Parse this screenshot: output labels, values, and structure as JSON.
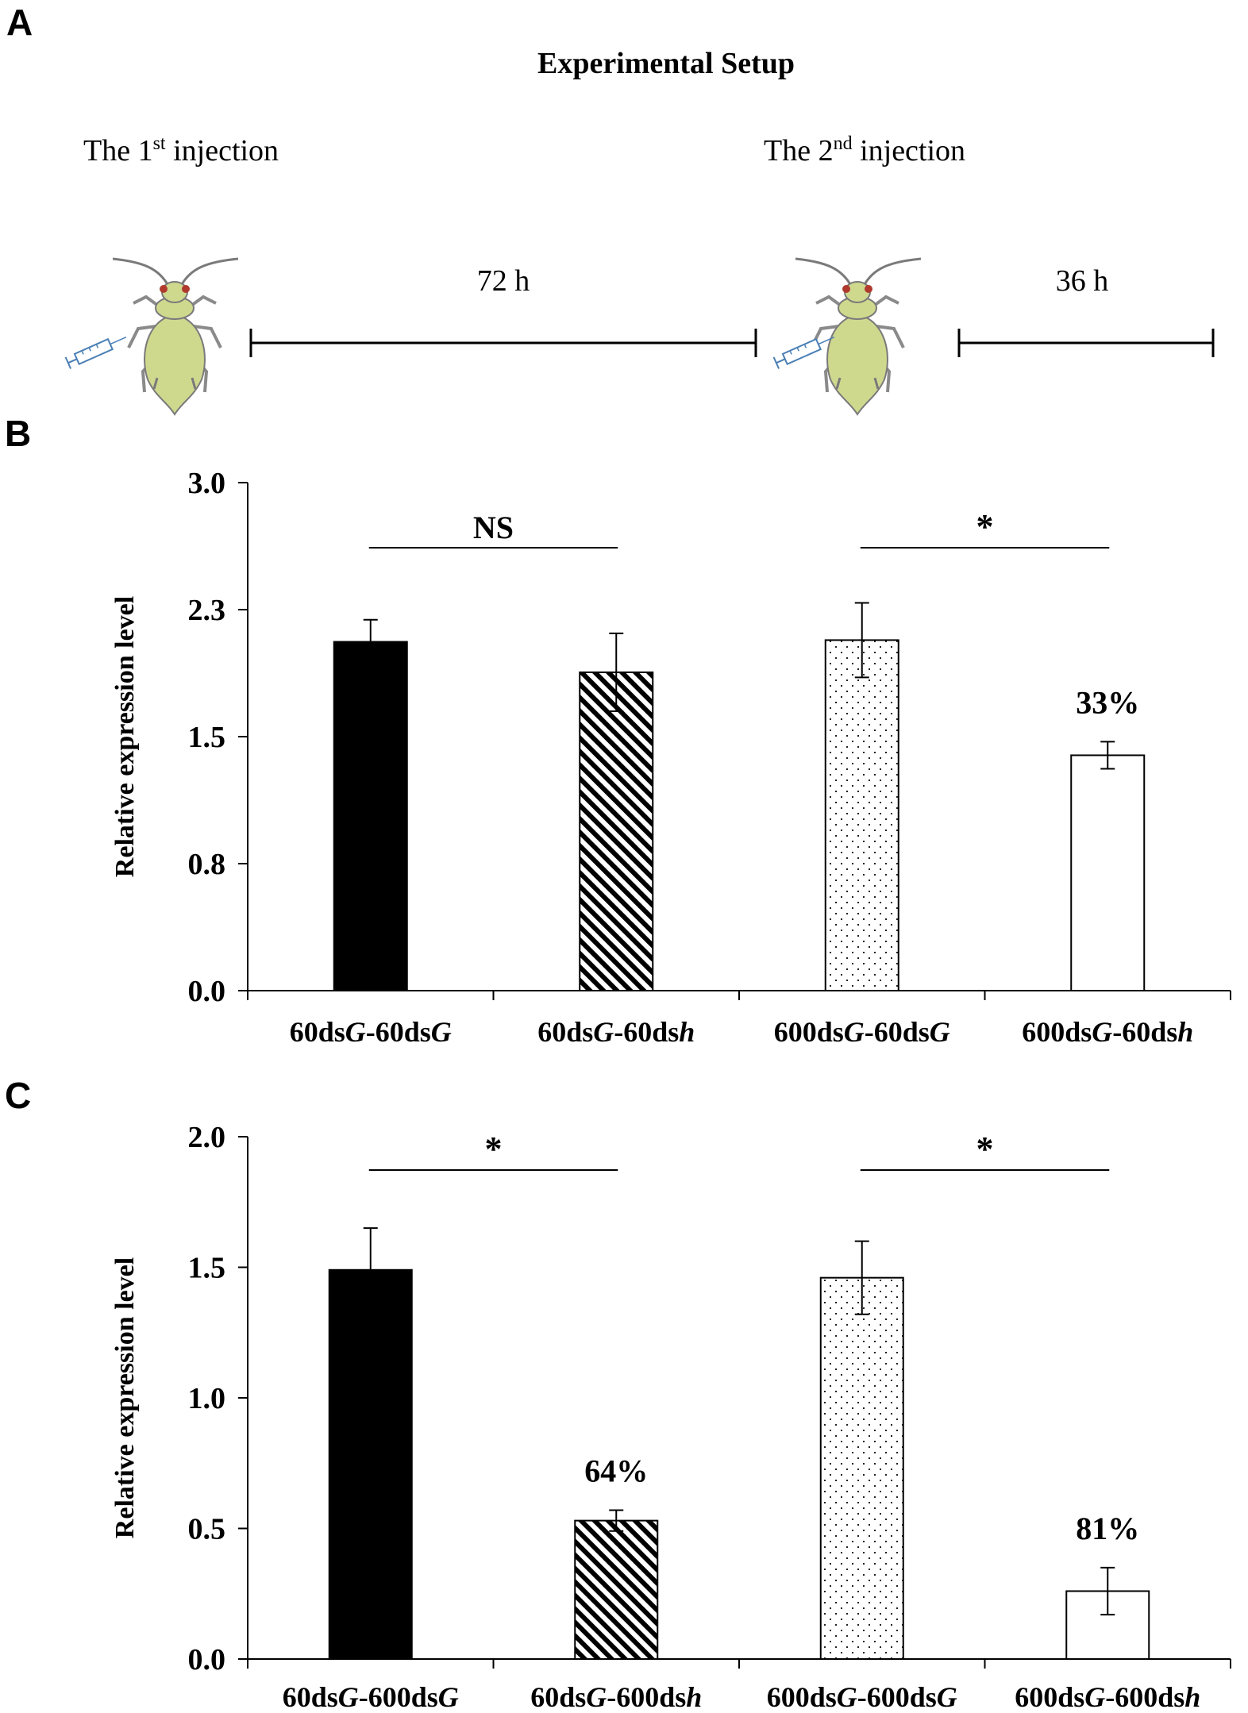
{
  "panels": {
    "a": {
      "label": "A",
      "title": "Experimental Setup",
      "injection1": {
        "prefix": "The 1",
        "sup": "st",
        "suffix": " injection"
      },
      "injection2": {
        "prefix": "The 2",
        "sup": "nd",
        "suffix": " injection"
      },
      "interval1": "72 h",
      "interval2": "36 h",
      "icons": [
        "aphid-icon",
        "syringe-icon"
      ],
      "colors": {
        "aphid_body": "#cfd98e",
        "aphid_outline": "#7a7a7a",
        "aphid_eye": "#b03a2e",
        "syringe": "#4a7fb5"
      }
    },
    "b": {
      "label": "B"
    },
    "c": {
      "label": "C"
    }
  },
  "chart_data": [
    {
      "id": "b",
      "type": "bar",
      "ylabel": "Relative expression level",
      "ylim": [
        0,
        3.0
      ],
      "yticks": [
        0,
        0.75,
        1.5,
        2.25,
        3.0
      ],
      "ytick_labels": [
        "0.0",
        "0.8",
        "1.5",
        "2.3",
        "3.0"
      ],
      "categories": [
        [
          {
            "t": "60ds",
            "i": false
          },
          {
            "t": "G",
            "i": true
          },
          {
            "t": "-60ds",
            "i": false
          },
          {
            "t": "G",
            "i": true
          }
        ],
        [
          {
            "t": "60ds",
            "i": false
          },
          {
            "t": "G",
            "i": true
          },
          {
            "t": "-60ds",
            "i": false
          },
          {
            "t": "h",
            "i": true
          }
        ],
        [
          {
            "t": "600ds",
            "i": false
          },
          {
            "t": "G",
            "i": true
          },
          {
            "t": "-60ds",
            "i": false
          },
          {
            "t": "G",
            "i": true
          }
        ],
        [
          {
            "t": "600ds",
            "i": false
          },
          {
            "t": "G",
            "i": true
          },
          {
            "t": "-60ds",
            "i": false
          },
          {
            "t": "h",
            "i": true
          }
        ]
      ],
      "values": [
        2.06,
        1.88,
        2.07,
        1.39
      ],
      "errors": [
        0.13,
        0.23,
        0.22,
        0.08
      ],
      "patterns": [
        "solid",
        "diagonal",
        "dots",
        "empty"
      ],
      "bar_labels": [
        "",
        "",
        "",
        "33%"
      ],
      "comparisons": [
        {
          "from": 0,
          "to": 1,
          "label": "NS"
        },
        {
          "from": 2,
          "to": 3,
          "label": "*"
        }
      ]
    },
    {
      "id": "c",
      "type": "bar",
      "ylabel": "Relative expression level",
      "ylim": [
        0,
        2.0
      ],
      "yticks": [
        0,
        0.5,
        1.0,
        1.5,
        2.0
      ],
      "ytick_labels": [
        "0.0",
        "0.5",
        "1.0",
        "1.5",
        "2.0"
      ],
      "categories": [
        [
          {
            "t": "60ds",
            "i": false
          },
          {
            "t": "G",
            "i": true
          },
          {
            "t": "-600ds",
            "i": false
          },
          {
            "t": "G",
            "i": true
          }
        ],
        [
          {
            "t": "60ds",
            "i": false
          },
          {
            "t": "G",
            "i": true
          },
          {
            "t": "-600ds",
            "i": false
          },
          {
            "t": "h",
            "i": true
          }
        ],
        [
          {
            "t": "600ds",
            "i": false
          },
          {
            "t": "G",
            "i": true
          },
          {
            "t": "-600ds",
            "i": false
          },
          {
            "t": "G",
            "i": true
          }
        ],
        [
          {
            "t": "600ds",
            "i": false
          },
          {
            "t": "G",
            "i": true
          },
          {
            "t": "-600ds",
            "i": false
          },
          {
            "t": "h",
            "i": true
          }
        ]
      ],
      "values": [
        1.49,
        0.53,
        1.46,
        0.26
      ],
      "errors": [
        0.16,
        0.04,
        0.14,
        0.09
      ],
      "patterns": [
        "solid",
        "diagonal",
        "dots",
        "empty"
      ],
      "bar_labels": [
        "",
        "64%",
        "",
        "81%"
      ],
      "comparisons": [
        {
          "from": 0,
          "to": 1,
          "label": "*"
        },
        {
          "from": 2,
          "to": 3,
          "label": "*"
        }
      ]
    }
  ]
}
